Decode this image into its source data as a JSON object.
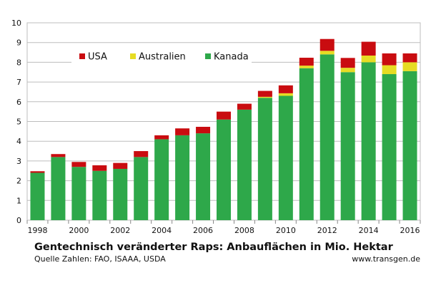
{
  "chart_data": {
    "type": "bar",
    "stacked": true,
    "title": "Gentechnisch veränderter Raps: Anbauflächen in Mio. Hektar",
    "source": "Quelle Zahlen: FAO, ISAAA, USDA",
    "credit": "www.transgen.de",
    "categories": [
      "1998",
      "1999",
      "2000",
      "2001",
      "2002",
      "2003",
      "2004",
      "2005",
      "2006",
      "2007",
      "2008",
      "2009",
      "2010",
      "2011",
      "2012",
      "2013",
      "2014",
      "2015",
      "2016"
    ],
    "x_tick_labels": [
      "1998",
      "2000",
      "2002",
      "2004",
      "2006",
      "2008",
      "2010",
      "2012",
      "2014",
      "2016"
    ],
    "ylim": [
      0,
      10
    ],
    "y_ticks": [
      0,
      1,
      2,
      3,
      4,
      5,
      6,
      7,
      8,
      9,
      10
    ],
    "grid": true,
    "legend_position": "top-left",
    "series": [
      {
        "name": "Kanada",
        "color": "#2ea84a",
        "values": [
          2.4,
          3.2,
          2.7,
          2.5,
          2.6,
          3.2,
          4.1,
          4.3,
          4.4,
          5.1,
          5.6,
          6.2,
          6.3,
          7.7,
          8.4,
          7.5,
          8.0,
          7.4,
          7.55
        ]
      },
      {
        "name": "Australien",
        "color": "#e6dc23",
        "values": [
          0,
          0,
          0,
          0,
          0,
          0,
          0,
          0,
          0,
          0,
          0,
          0.05,
          0.13,
          0.13,
          0.18,
          0.22,
          0.34,
          0.45,
          0.45
        ]
      },
      {
        "name": "USA",
        "color": "#c90c10",
        "values": [
          0.08,
          0.15,
          0.25,
          0.28,
          0.3,
          0.3,
          0.2,
          0.35,
          0.33,
          0.4,
          0.3,
          0.3,
          0.4,
          0.4,
          0.6,
          0.5,
          0.7,
          0.6,
          0.45
        ]
      }
    ],
    "legend_order": [
      "USA",
      "Australien",
      "Kanada"
    ]
  }
}
